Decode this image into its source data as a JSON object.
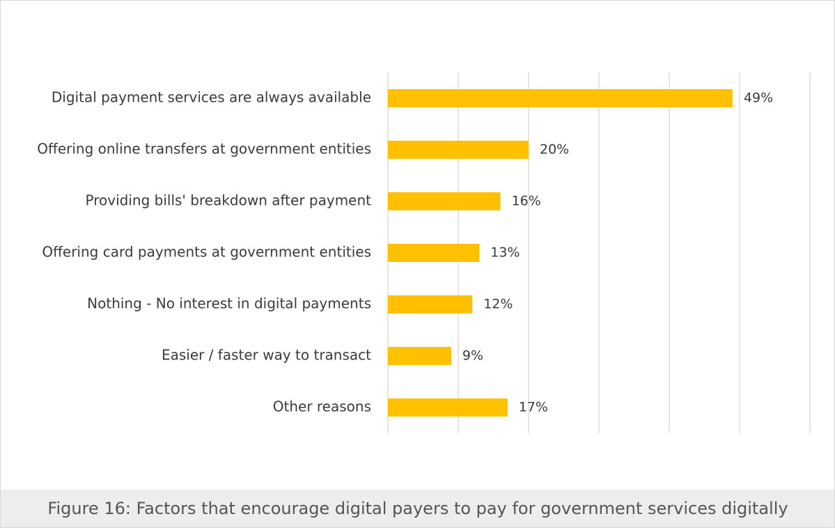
{
  "chart_data": {
    "type": "bar",
    "orientation": "horizontal",
    "categories": [
      "Digital payment services are always available",
      "Offering online transfers at government entities",
      "Providing bills' breakdown after payment",
      "Offering card payments at government entities",
      "Nothing - No interest in digital payments",
      "Easier / faster way to transact",
      "Other reasons"
    ],
    "values": [
      49,
      20,
      16,
      13,
      12,
      9,
      17
    ],
    "value_labels": [
      "49%",
      "20%",
      "16%",
      "13%",
      "12%",
      "9%",
      "17%"
    ],
    "color": "#ffc000",
    "xlim": [
      0,
      60
    ],
    "xticks": [
      0,
      10,
      20,
      30,
      40,
      50,
      60
    ],
    "grid": true,
    "caption": "Figure 16: Factors that encourage digital payers to pay for government services digitally"
  }
}
